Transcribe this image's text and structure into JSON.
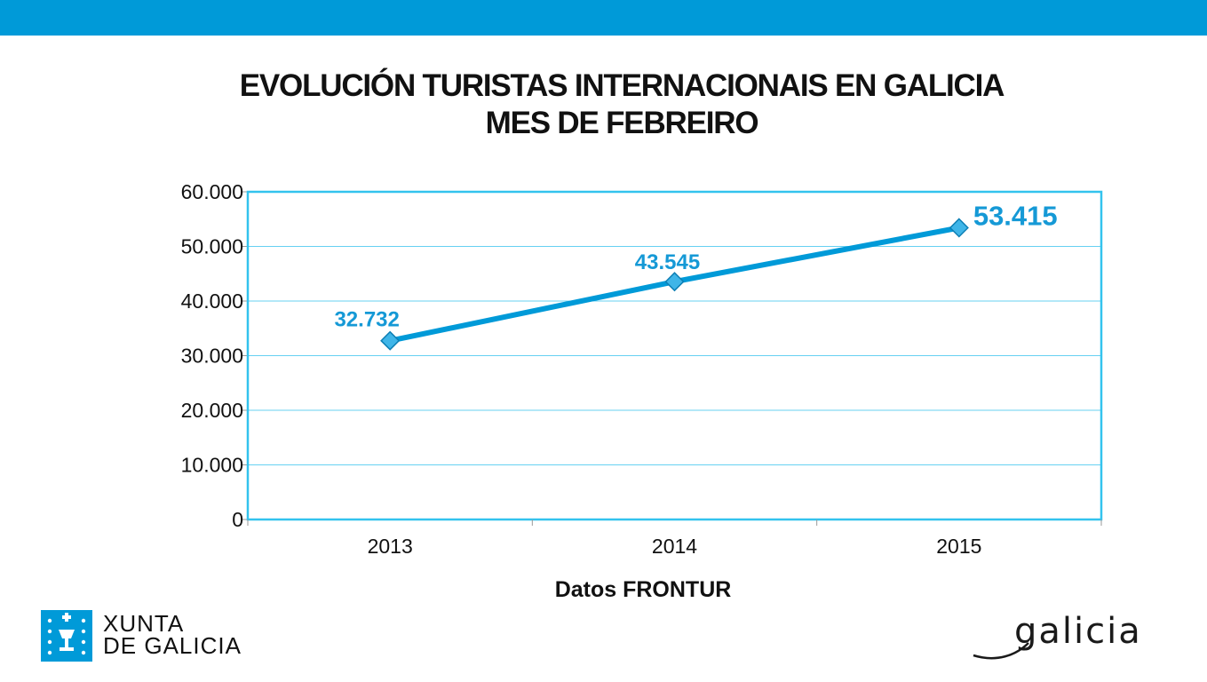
{
  "title": {
    "line1": "EVOLUCIÓN TURISTAS INTERNACIONAIS EN GALICIA",
    "line2": "MES DE FEBREIRO"
  },
  "chart_data": {
    "type": "line",
    "categories": [
      "2013",
      "2014",
      "2015"
    ],
    "series": [
      {
        "values": [
          32732,
          43545,
          53415
        ],
        "labels": [
          "32.732",
          "43.545",
          "53.415"
        ]
      }
    ],
    "xlabel": "Datos FRONTUR",
    "ylim": [
      0,
      60000
    ],
    "y_ticks": [
      0,
      10000,
      20000,
      30000,
      40000,
      50000,
      60000
    ],
    "y_tick_labels": [
      "0",
      "10.000",
      "20.000",
      "30.000",
      "40.000",
      "50.000",
      "60.000"
    ],
    "grid": true,
    "legend": "none",
    "colors": {
      "line": "#009ad8",
      "frame": "#33c3ee",
      "grid": "#67d1f2",
      "label": "#1599d6"
    }
  },
  "logos": {
    "xunta": {
      "line1": "XUNTA",
      "line2": "DE GALICIA",
      "emblem_icon": "xunta-emblem-icon"
    },
    "galicia": {
      "text": "galicia"
    }
  },
  "colors": {
    "band": "#009ad8"
  }
}
